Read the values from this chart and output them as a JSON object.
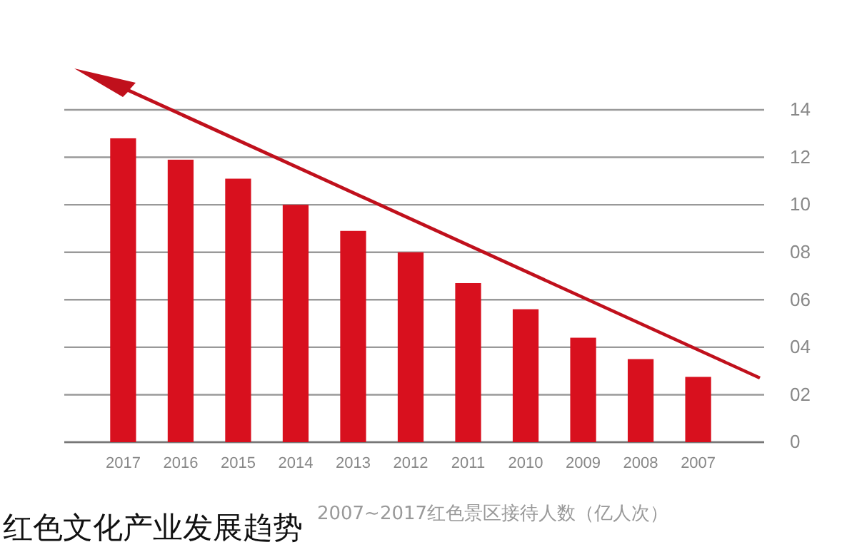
{
  "chart_data": {
    "type": "bar",
    "title": "红色文化产业发展趋势",
    "xlabel": "2007~2017红色景区接待人数（亿人次）",
    "categories": [
      "2017",
      "2016",
      "2015",
      "2014",
      "2013",
      "2012",
      "2011",
      "2010",
      "2009",
      "2008",
      "2007"
    ],
    "values": [
      12.8,
      11.9,
      11.1,
      10.0,
      8.9,
      8.0,
      6.7,
      5.6,
      4.4,
      3.5,
      2.75
    ],
    "color": "#d8101e",
    "ylim": [
      0,
      14
    ],
    "yticks": [
      0,
      {
        "value": 2,
        "label": "02"
      },
      {
        "value": 4,
        "label": "04"
      },
      {
        "value": 6,
        "label": "06"
      },
      {
        "value": 8,
        "label": "08"
      },
      10,
      12,
      14
    ],
    "grid": "y"
  }
}
